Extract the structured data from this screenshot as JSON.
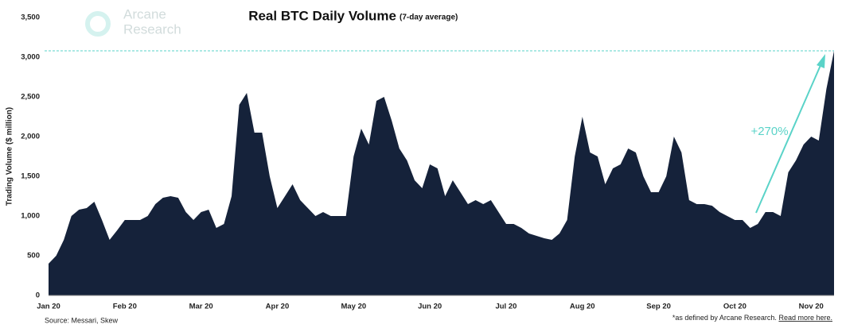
{
  "chart_data": {
    "type": "area",
    "title": "Real BTC Daily Volume",
    "subtitle": "(7-day average)",
    "y_label": "Trading Volume ($ million)",
    "logo": [
      "Arcane",
      "Research"
    ],
    "source": "Source: Messari, Skew",
    "footnote": "*as defined by Arcane Research.",
    "footnote_link": "Read more here.",
    "annotation": "+270%",
    "reference_value": 3080,
    "color": "#15223a",
    "reference_color": "#5ad3c8",
    "ylim": [
      0,
      3500
    ],
    "yticks": [
      0,
      500,
      {
        "value": 1000,
        "label": "1,000"
      },
      {
        "value": 1500,
        "label": "1,500"
      },
      {
        "value": 2000,
        "label": "2,000"
      },
      {
        "value": 2500,
        "label": "2,500"
      },
      {
        "value": 3000,
        "label": "3,000"
      },
      {
        "value": 3500,
        "label": "3,500"
      }
    ],
    "categories": [
      "Jan 20",
      null,
      null,
      null,
      null,
      null,
      null,
      null,
      null,
      null,
      "Feb 20",
      null,
      null,
      null,
      null,
      null,
      null,
      null,
      null,
      null,
      "Mar 20",
      null,
      null,
      null,
      null,
      null,
      null,
      null,
      null,
      null,
      "Apr 20",
      null,
      null,
      null,
      null,
      null,
      null,
      null,
      null,
      null,
      "May 20",
      null,
      null,
      null,
      null,
      null,
      null,
      null,
      null,
      null,
      "Jun 20",
      null,
      null,
      null,
      null,
      null,
      null,
      null,
      null,
      null,
      "Jul 20",
      null,
      null,
      null,
      null,
      null,
      null,
      null,
      null,
      null,
      "Aug 20",
      null,
      null,
      null,
      null,
      null,
      null,
      null,
      null,
      null,
      "Sep 20",
      null,
      null,
      null,
      null,
      null,
      null,
      null,
      null,
      null,
      "Oct 20",
      null,
      null,
      null,
      null,
      null,
      null,
      null,
      null,
      null,
      "Nov 20",
      null,
      null,
      null
    ],
    "values": [
      400,
      500,
      700,
      1000,
      1080,
      1100,
      1180,
      950,
      700,
      820,
      950,
      950,
      950,
      1000,
      1150,
      1230,
      1250,
      1230,
      1050,
      950,
      1050,
      1080,
      850,
      900,
      1250,
      2400,
      2550,
      2050,
      2050,
      1500,
      1100,
      1250,
      1400,
      1200,
      1100,
      1000,
      1050,
      1000,
      1000,
      1000,
      1750,
      2100,
      1900,
      2450,
      2500,
      2200,
      1850,
      1700,
      1450,
      1350,
      1650,
      1600,
      1250,
      1450,
      1300,
      1150,
      1200,
      1150,
      1200,
      1050,
      900,
      900,
      850,
      780,
      750,
      720,
      700,
      780,
      950,
      1750,
      2250,
      1800,
      1750,
      1400,
      1600,
      1650,
      1850,
      1800,
      1500,
      1300,
      1300,
      1500,
      2000,
      1800,
      1200,
      1150,
      1150,
      1130,
      1050,
      1000,
      950,
      950,
      850,
      900,
      1050,
      1050,
      1000,
      1550,
      1700,
      1900,
      2000,
      1950,
      2600,
      3080
    ]
  }
}
